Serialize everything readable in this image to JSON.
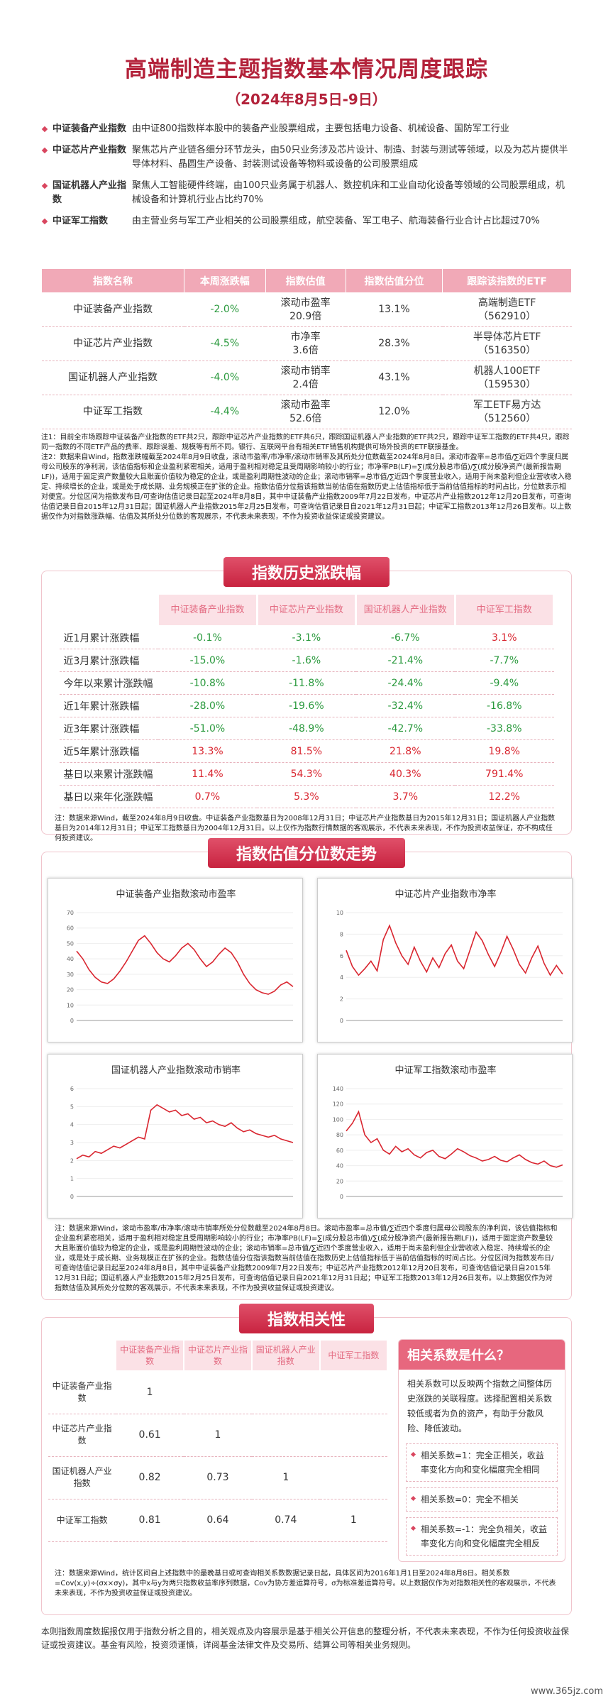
{
  "header": {
    "title": "高端制造主题指数基本情况周度跟踪",
    "subtitle": "（2024年8月5日-9日）"
  },
  "intro": [
    {
      "name": "中证装备产业指数",
      "desc": "由中证800指数样本股中的装备产业股票组成，主要包括电力设备、机械设备、国防军工行业"
    },
    {
      "name": "中证芯片产业指数",
      "desc": "聚焦芯片产业链各细分环节龙头，由50只业务涉及芯片设计、制造、封装与测试等领域，以及为芯片提供半导体材料、晶圆生产设备、封装测试设备等物料或设备的公司股票组成"
    },
    {
      "name": "国证机器人产业指数",
      "desc": "聚焦人工智能硬件终端，由100只业务属于机器人、数控机床和工业自动化设备等领域的公司股票组成，机械设备和计算机行业占比约70%"
    },
    {
      "name": "中证军工指数",
      "desc": "由主营业务与军工产业相关的公司股票组成，航空装备、军工电子、航海装备行业合计占比超过70%"
    }
  ],
  "valuation_table": {
    "headers": [
      "指数名称",
      "本周涨跌幅",
      "指数估值",
      "指数估值分位",
      "跟踪该指数的ETF"
    ],
    "rows": [
      [
        "中证装备产业指数",
        "-2.0%",
        "滚动市盈率\n20.9倍",
        "13.1%",
        "高端制造ETF\n（562910）"
      ],
      [
        "中证芯片产业指数",
        "-4.5%",
        "市净率\n3.6倍",
        "28.3%",
        "半导体芯片ETF\n（516350）"
      ],
      [
        "国证机器人产业指数",
        "-4.0%",
        "滚动市销率\n2.4倍",
        "43.1%",
        "机器人100ETF\n（159530）"
      ],
      [
        "中证军工指数",
        "-4.4%",
        "滚动市盈率\n52.6倍",
        "12.0%",
        "军工ETF易方达\n（512560）"
      ]
    ]
  },
  "note1": "注1：目前全市场跟踪中证装备产业指数的ETF共2只，跟踪中证芯片产业指数的ETF共6只，跟踪国证机器人产业指数的ETF共2只，跟踪中证军工指数的ETF共4只，跟踪同一指数的不同ETF产品的费率、跟踪误差、规模等有所不同。银行、互联网平台有相关ETF销售机构提供可场外投资的ETF联接基金。\n注2：数据来自Wind，指数涨跌幅截至2024年8月9日收盘，滚动市盈率/市净率/滚动市销率及其所处分位数截至2024年8月8日。滚动市盈率=总市值/∑近四个季度归属母公司股东的净利润，该估值指标和企业盈利紧密相关，适用于盈利相对稳定且受周期影响较小的行业；市净率PB(LF)=∑(成分股总市值)/∑(成分股净资产(最新报告期LF))，适用于固定资产数量较大且账面价值较为稳定的企业，或是盈利周期性波动的企业；滚动市销率=总市值/∑近四个季度营业收入，适用于尚未盈利但企业营收收入稳定、持续增长的企业，或是处于成长期、业务规模正在扩张的企业。指数估值分位指该指数当前估值在指数历史上估值指标低于当前估值指标的时间占比，分位数表示相对便宜。分位区间为指数发布日/可查询估值记录日起至2024年8月8日，其中中证装备产业指数2009年7月22日发布，中证芯片产业指数2012年12月20日发布，可查询估值记录日自2015年12月31日起；国证机器人产业指数2015年2月25日发布，可查询估值记录日自2021年12月31日起；中证军工指数2013年12月26日发布。以上数据仅作为对指数涨跌幅、估值及其所处分位数的客观展示，不代表未来表现，不作为投资收益保证或投资建议。",
  "history": {
    "title": "指数历史涨跌幅",
    "headers": [
      "中证装备产业指数",
      "中证芯片产业指数",
      "国证机器人产业指数",
      "中证军工指数"
    ],
    "rows": [
      {
        "label": "近1月累计涨跌幅",
        "values": [
          "-0.1%",
          "-3.1%",
          "-6.7%",
          "3.1%"
        ]
      },
      {
        "label": "近3月累计涨跌幅",
        "values": [
          "-15.0%",
          "-1.6%",
          "-21.4%",
          "-7.7%"
        ]
      },
      {
        "label": "今年以来累计涨跌幅",
        "values": [
          "-10.8%",
          "-11.8%",
          "-24.4%",
          "-9.4%"
        ]
      },
      {
        "label": "近1年累计涨跌幅",
        "values": [
          "-28.0%",
          "-19.6%",
          "-32.4%",
          "-16.8%"
        ]
      },
      {
        "label": "近3年累计涨跌幅",
        "values": [
          "-51.0%",
          "-48.9%",
          "-42.7%",
          "-33.8%"
        ]
      },
      {
        "label": "近5年累计涨跌幅",
        "values": [
          "13.3%",
          "81.5%",
          "21.8%",
          "19.8%"
        ]
      },
      {
        "label": "基日以来累计涨跌幅",
        "values": [
          "11.4%",
          "54.3%",
          "40.3%",
          "791.4%"
        ]
      },
      {
        "label": "基日以来年化涨跌幅",
        "values": [
          "0.7%",
          "5.3%",
          "3.7%",
          "12.2%"
        ]
      }
    ],
    "note": "注：数据来源Wind，截至2024年8月9日收盘。中证装备产业指数基日为2008年12月31日；中证芯片产业指数基日为2015年12月31日；国证机器人产业指数基日为2014年12月31日；中证军工指数基日为2004年12月31日。以上仅作为指数行情数据的客观展示，不代表未来表现，不作为投资收益保证，亦不构成任何投资建议。"
  },
  "valuation_trend": {
    "title": "指数估值分位数走势",
    "charts": [
      {
        "type": "line",
        "title": "中证装备产业指数滚动市盈率",
        "color": "#d9252f",
        "ylim": [
          0,
          70
        ],
        "yticks": [
          0,
          10,
          20,
          30,
          40,
          50,
          60,
          70
        ],
        "values": [
          45,
          40,
          33,
          28,
          25,
          24,
          27,
          32,
          38,
          45,
          52,
          55,
          50,
          44,
          40,
          38,
          42,
          47,
          50,
          46,
          40,
          35,
          38,
          43,
          47,
          44,
          38,
          30,
          24,
          20,
          18,
          17,
          19,
          23,
          25,
          22
        ]
      },
      {
        "type": "line",
        "title": "中证芯片产业指数市净率",
        "color": "#d9252f",
        "ylim": [
          0,
          10
        ],
        "yticks": [
          0,
          2,
          4,
          6,
          8,
          10
        ],
        "values": [
          6.5,
          5,
          4.2,
          4.8,
          5.5,
          4.6,
          7.5,
          8.8,
          7.2,
          6,
          5.2,
          6.8,
          5.5,
          4.5,
          5.8,
          4.9,
          6.2,
          7,
          5.5,
          4.8,
          6.5,
          8.2,
          7.4,
          6.1,
          5,
          6.3,
          7.8,
          6.6,
          5.2,
          4.4,
          5.8,
          6.9,
          5.3,
          4.2,
          5.1,
          4.3
        ]
      },
      {
        "type": "line",
        "title": "国证机器人产业指数滚动市销率",
        "color": "#d9252f",
        "ylim": [
          0,
          6
        ],
        "yticks": [
          0,
          1,
          2,
          3,
          4,
          5,
          6
        ],
        "values": [
          2.1,
          2.3,
          2.2,
          2.5,
          2.4,
          2.6,
          2.8,
          2.7,
          2.9,
          3.1,
          3.3,
          3.2,
          4.8,
          5.1,
          4.9,
          4.7,
          4.8,
          4.5,
          4.6,
          4.3,
          4.4,
          4.1,
          4.2,
          4.0,
          3.9,
          4.1,
          3.8,
          3.6,
          3.7,
          3.5,
          3.4,
          3.3,
          3.4,
          3.2,
          3.1,
          3.0
        ]
      },
      {
        "type": "line",
        "title": "中证军工指数滚动市盈率",
        "color": "#d9252f",
        "ylim": [
          0,
          140
        ],
        "yticks": [
          0,
          20,
          40,
          60,
          80,
          100,
          120,
          140
        ],
        "values": [
          85,
          95,
          110,
          80,
          70,
          75,
          60,
          55,
          65,
          58,
          62,
          54,
          50,
          57,
          60,
          52,
          49,
          55,
          62,
          58,
          53,
          50,
          46,
          48,
          52,
          47,
          45,
          50,
          54,
          48,
          44,
          42,
          46,
          40,
          38,
          41
        ]
      }
    ],
    "note": "注：数据来源Wind，滚动市盈率/市净率/滚动市销率所处分位数截至2024年8月8日。滚动市盈率=总市值/∑近四个季度归属母公司股东的净利润，该估值指标和企业盈利紧密相关，适用于盈利相对稳定且受周期影响较小的行业；市净率PB(LF)=∑(成分股总市值)/∑(成分股净资产(最新报告期LF))，适用于固定资产数量较大且账面价值较为稳定的企业，或是盈利周期性波动的企业；滚动市销率=总市值/∑近四个季度营业收入，适用于尚未盈利但企业营收收入稳定、持续增长的企业，或是处于成长期、业务规模正在扩张的企业。指数估值分位指该指数当前估值在指数历史上估值指标低于当前估值指标的时间占比。分位区间为指数发布日/可查询估值记录日起至2024年8月8日，其中中证装备产业指数2009年7月22日发布；中证芯片产业指数2012年12月20日发布，可查询估值记录日自2015年12月31日起；国证机器人产业指数2015年2月25日发布，可查询估值记录日自2021年12月31日起；中证军工指数2013年12月26日发布。以上数据仅作为对指数估值及其所处分位数的客观展示，不代表未来表现，不作为投资收益保证或投资建议。"
  },
  "correlation": {
    "title": "指数相关性",
    "headers": [
      "中证装备产业指数",
      "中证芯片产业指数",
      "国证机器人产业指数",
      "中证军工指数"
    ],
    "rows": [
      {
        "label": "中证装备产业指数",
        "values": [
          1
        ]
      },
      {
        "label": "中证芯片产业指数",
        "values": [
          0.61,
          1
        ]
      },
      {
        "label": "国证机器人产业指数",
        "values": [
          0.82,
          0.73,
          1
        ]
      },
      {
        "label": "中证军工指数",
        "values": [
          0.81,
          0.64,
          0.74,
          1
        ]
      }
    ],
    "explainer": {
      "title": "相关系数是什么？",
      "text": "相关系数可以反映两个指数之间整体历史涨跌的关联程度。选择配置相关系数较低或者为负的资产，有助于分散风险、降低波动。",
      "points": [
        "相关系数=1：完全正相关，收益率变化方向和变化幅度完全相同",
        "相关系数=0：完全不相关",
        "相关系数=-1：完全负相关，收益率变化方向和变化幅度完全相反"
      ]
    },
    "note": "注：数据来源Wind，统计区间自上述指数中的最晚基日或可查询相关系数数据记录日起，具体区间为2016年1月1日至2024年8月8日。相关系数=Cov(x,y)÷(σx×σy)，其中x与y为两只指数收益率序列数据，Cov为协方差运算符号，σ为标准差运算符号。以上数据仅作为对指数相关性的客观展示，不代表未来表现，不作为投资收益保证或投资建议。"
  },
  "footer": "本则指数周度数据报仅用于指数分析之目的，相关观点及内容展示是基于相关公开信息的整理分析，不代表未来表现，不作为任何投资收益保证或投资建议。基金有风险，投资须谨慎，详阅基金法律文件及交易所、结算公司等相关业务规则。",
  "watermark": "www.365jz.com"
}
